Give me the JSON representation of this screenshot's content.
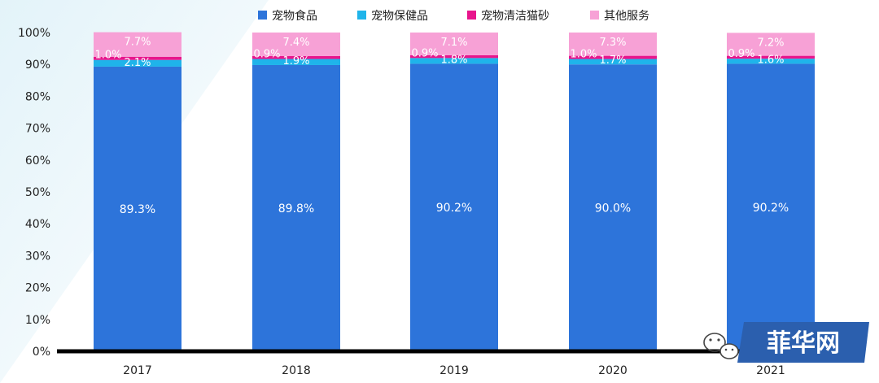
{
  "chart_data": {
    "type": "bar",
    "stacked": true,
    "categories": [
      "2017",
      "2018",
      "2019",
      "2020",
      "2021"
    ],
    "series": [
      {
        "name": "宠物食品",
        "values": [
          89.3,
          89.8,
          90.2,
          90.0,
          90.2
        ],
        "value_labels": [
          "89.3%",
          "89.8%",
          "90.2%",
          "90.0%",
          "90.2%"
        ],
        "color": "#2D74DA"
      },
      {
        "name": "宠物保健品",
        "values": [
          2.1,
          1.9,
          1.8,
          1.7,
          1.6
        ],
        "value_labels": [
          "2.1%",
          "1.9%",
          "1.8%",
          "1.7%",
          "1.6%"
        ],
        "color": "#1FB4EA"
      },
      {
        "name": "宠物清洁猫砂",
        "values": [
          1.0,
          0.9,
          0.9,
          1.0,
          0.9
        ],
        "value_labels": [
          "1.0%",
          "0.9%",
          "0.9%",
          "1.0%",
          "0.9%"
        ],
        "color": "#E8158C"
      },
      {
        "name": "其他服务",
        "values": [
          7.7,
          7.4,
          7.1,
          7.3,
          7.2
        ],
        "value_labels": [
          "7.7%",
          "7.4%",
          "7.1%",
          "7.3%",
          "7.2%"
        ],
        "color": "#F7A1D6"
      }
    ],
    "yticks": [
      "0%",
      "10%",
      "20%",
      "30%",
      "40%",
      "50%",
      "60%",
      "70%",
      "80%",
      "90%",
      "100%"
    ],
    "ylim": [
      0,
      100
    ],
    "grid": false,
    "legend": "top",
    "title": "",
    "xlabel": "",
    "ylabel": ""
  },
  "watermark": {
    "text": "菲华网",
    "icon": "wechat-icon"
  }
}
